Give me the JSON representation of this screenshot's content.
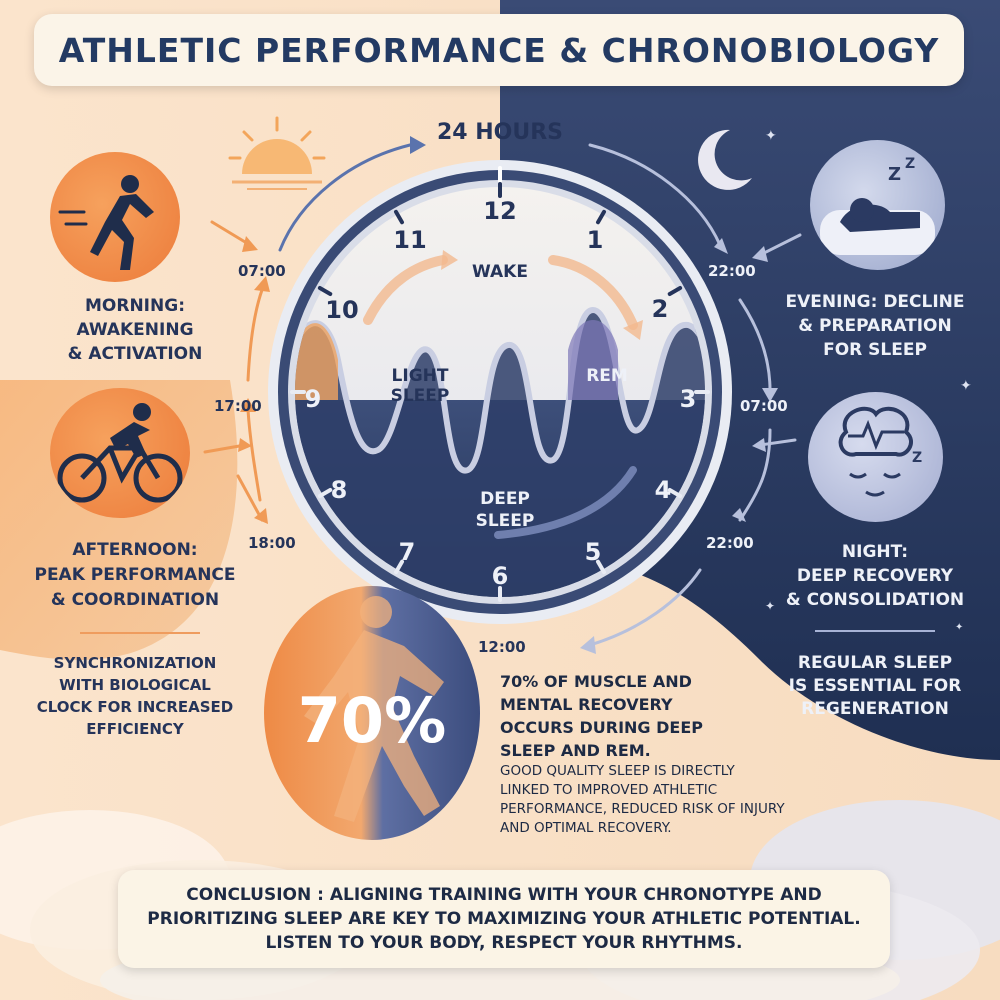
{
  "title": "ATHLETIC PERFORMANCE & CHRONOBIOLOGY",
  "clock": {
    "header": "24 HOURS",
    "numbers": [
      "12",
      "1",
      "2",
      "3",
      "4",
      "5",
      "6",
      "7",
      "8",
      "9",
      "10",
      "11"
    ],
    "zones": {
      "wake": "WAKE",
      "light_sleep": "LIGHT\nSLEEP",
      "rem": "REM",
      "deep_sleep": "DEEP\nSLEEP"
    }
  },
  "times": {
    "t0700_left": "07:00",
    "t1700": "17:00",
    "t1800": "18:00",
    "t2200_top": "22:00",
    "t0700_right": "07:00",
    "t2200_right": "22:00",
    "t1200": "12:00"
  },
  "left": {
    "morning": "MORNING:\nAWAKENING\n& ACTIVATION",
    "afternoon": "AFTERNOON:\nPEAK PERFORMANCE\n& COORDINATION",
    "sync": "SYNCHRONIZATION\nWITH BIOLOGICAL\nCLOCK FOR INCREASED\nEFFICIENCY"
  },
  "right": {
    "evening": "EVENING: DECLINE\n& PREPARATION\nFOR SLEEP",
    "night": "NIGHT:\nDEEP RECOVERY\n& CONSOLIDATION",
    "regular": "REGULAR SLEEP\nIS ESSENTIAL FOR\nREGENERATION"
  },
  "stat": {
    "value": "70%",
    "headline": "70% OF MUSCLE AND\nMENTAL RECOVERY\nOCCURS DURING DEEP\nSLEEP AND REM.",
    "body": "GOOD QUALITY SLEEP IS DIRECTLY\nLINKED TO IMPROVED ATHLETIC\nPERFORMANCE, REDUCED RISK OF INJURY\nAND OPTIMAL RECOVERY."
  },
  "conclusion": "CONCLUSION : ALIGNING TRAINING WITH YOUR CHRONOTYPE AND\nPRIORITIZING SLEEP ARE KEY TO MAXIMIZING YOUR ATHLETIC POTENTIAL.\nLISTEN TO YOUR BODY, RESPECT YOUR RHYTHMS.",
  "icons": [
    "runner-icon",
    "cyclist-icon",
    "sun-icon",
    "moon-icon",
    "sleeper-icon",
    "brain-icon",
    "sprinter-icon"
  ],
  "colors": {
    "navy": "#25345a",
    "orange": "#f08a3c",
    "cream": "#fbf4e8",
    "night": "#26375c"
  }
}
